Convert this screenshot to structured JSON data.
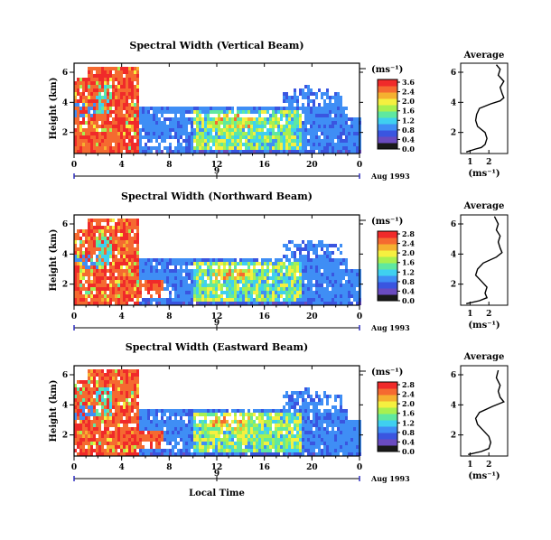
{
  "chart_data": [
    {
      "type": "heatmap",
      "title": "Spectral Width (Vertical Beam)",
      "ylabel": "Height (km)",
      "x_ticks": [
        "0",
        "4",
        "8",
        "12",
        "16",
        "20",
        "0"
      ],
      "y_ticks": [
        "2",
        "4",
        "6"
      ],
      "date_tick": "9",
      "date_label": "Aug 1993",
      "xlim": [
        0,
        24
      ],
      "ylim": [
        0.6,
        6.6
      ],
      "colorbar": {
        "unit": "(ms⁻¹)",
        "ticks": [
          "3.6",
          "2.4",
          "2.0",
          "1.6",
          "1.2",
          "0.8",
          "0.4",
          "0.0"
        ]
      },
      "average": {
        "title": "Average",
        "xlabel": "(ms⁻¹)",
        "x_ticks": [
          "1",
          "2"
        ],
        "y_ticks": [
          "2",
          "4",
          "6"
        ],
        "profile": [
          [
            0.7,
            0.8
          ],
          [
            0.9,
            1.3
          ],
          [
            1.0,
            1.6
          ],
          [
            1.2,
            1.8
          ],
          [
            1.6,
            1.9
          ],
          [
            2.0,
            1.8
          ],
          [
            2.4,
            1.4
          ],
          [
            2.8,
            1.3
          ],
          [
            3.2,
            1.35
          ],
          [
            3.6,
            1.5
          ],
          [
            3.9,
            2.1
          ],
          [
            4.1,
            2.6
          ],
          [
            4.3,
            2.8
          ],
          [
            4.6,
            2.7
          ],
          [
            5.0,
            2.6
          ],
          [
            5.4,
            2.8
          ],
          [
            5.8,
            2.5
          ],
          [
            6.2,
            2.6
          ],
          [
            6.5,
            2.4
          ]
        ]
      }
    },
    {
      "type": "heatmap",
      "title": "Spectral Width (Northward Beam)",
      "ylabel": "Height (km)",
      "x_ticks": [
        "0",
        "4",
        "8",
        "12",
        "16",
        "20",
        "0"
      ],
      "y_ticks": [
        "2",
        "4",
        "6"
      ],
      "date_tick": "9",
      "date_label": "Aug 1993",
      "xlim": [
        0,
        24
      ],
      "ylim": [
        0.6,
        6.6
      ],
      "colorbar": {
        "unit": "(ms⁻¹)",
        "ticks": [
          "2.8",
          "2.4",
          "2.0",
          "1.6",
          "1.2",
          "0.8",
          "0.4",
          "0.0"
        ]
      },
      "average": {
        "title": "Average",
        "xlabel": "(ms⁻¹)",
        "x_ticks": [
          "1",
          "2"
        ],
        "y_ticks": [
          "2",
          "4",
          "6"
        ],
        "profile": [
          [
            0.7,
            0.8
          ],
          [
            0.9,
            1.5
          ],
          [
            1.1,
            1.9
          ],
          [
            1.4,
            1.8
          ],
          [
            1.8,
            1.9
          ],
          [
            2.2,
            1.6
          ],
          [
            2.6,
            1.3
          ],
          [
            3.0,
            1.4
          ],
          [
            3.4,
            1.7
          ],
          [
            3.8,
            2.4
          ],
          [
            4.1,
            2.7
          ],
          [
            4.4,
            2.6
          ],
          [
            4.8,
            2.5
          ],
          [
            5.2,
            2.6
          ],
          [
            5.6,
            2.4
          ],
          [
            6.0,
            2.5
          ],
          [
            6.5,
            2.3
          ]
        ]
      }
    },
    {
      "type": "heatmap",
      "title": "Spectral Width (Eastward Beam)",
      "ylabel": "Height (km)",
      "x_ticks": [
        "0",
        "4",
        "8",
        "12",
        "16",
        "20",
        "0"
      ],
      "y_ticks": [
        "2",
        "4",
        "6"
      ],
      "date_tick": "9",
      "date_label": "Aug 1993",
      "xlabel": "Local Time",
      "xlim": [
        0,
        24
      ],
      "ylim": [
        0.6,
        6.6
      ],
      "colorbar": {
        "unit": "(ms⁻¹)",
        "ticks": [
          "2.8",
          "2.4",
          "2.0",
          "1.6",
          "1.2",
          "0.8",
          "0.4",
          "0.0"
        ]
      },
      "average": {
        "title": "Average",
        "xlabel": "(ms⁻¹)",
        "x_ticks": [
          "1",
          "2"
        ],
        "y_ticks": [
          "2",
          "4",
          "6"
        ],
        "profile": [
          [
            0.7,
            0.9
          ],
          [
            0.9,
            1.6
          ],
          [
            1.1,
            2.0
          ],
          [
            1.5,
            2.1
          ],
          [
            1.9,
            2.0
          ],
          [
            2.3,
            1.7
          ],
          [
            2.7,
            1.4
          ],
          [
            3.1,
            1.3
          ],
          [
            3.5,
            1.5
          ],
          [
            3.9,
            2.2
          ],
          [
            4.2,
            2.8
          ],
          [
            4.5,
            2.6
          ],
          [
            4.9,
            2.5
          ],
          [
            5.3,
            2.6
          ],
          [
            5.8,
            2.4
          ],
          [
            6.3,
            2.5
          ]
        ]
      }
    }
  ],
  "colors": {
    "scale": [
      "#1a1a1a",
      "#6a4bc0",
      "#3a55e0",
      "#3f8ef5",
      "#3fd0f0",
      "#5fe8a0",
      "#a8f050",
      "#f5f040",
      "#f5b030",
      "#f56a30",
      "#f02a2a"
    ]
  }
}
